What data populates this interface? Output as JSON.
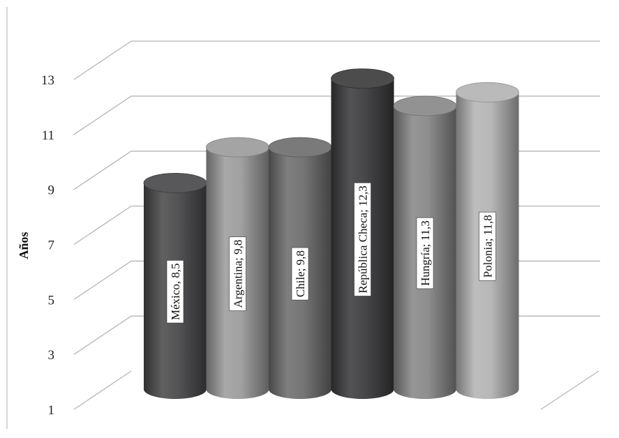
{
  "chart_data": {
    "type": "bar",
    "style": "3d-cylinder",
    "categories": [
      "México",
      "Argentina",
      "Chile",
      "República Checa",
      "Hungría",
      "Polonia"
    ],
    "values": [
      8.5,
      9.8,
      9.8,
      12.3,
      11.3,
      11.8
    ],
    "data_labels": [
      "México, 8,5",
      "Argentina; 9,8",
      "Chile; 9,8",
      "República Checa; 12,3",
      "Hungría; 11,3",
      "Polonia; 11,8"
    ],
    "bar_colors": [
      "#4a4a4c",
      "#9c9c9c",
      "#6e6e6e",
      "#3c3c3e",
      "#888888",
      "#b4b4b4"
    ],
    "title": "",
    "xlabel": "",
    "ylabel": "Años",
    "ylim": [
      1,
      13
    ],
    "yticks": [
      1,
      3,
      5,
      7,
      9,
      11,
      13
    ],
    "ytick_labels": [
      "1",
      "3",
      "5",
      "7",
      "9",
      "11",
      "13"
    ],
    "grid": true,
    "legend": "none"
  }
}
